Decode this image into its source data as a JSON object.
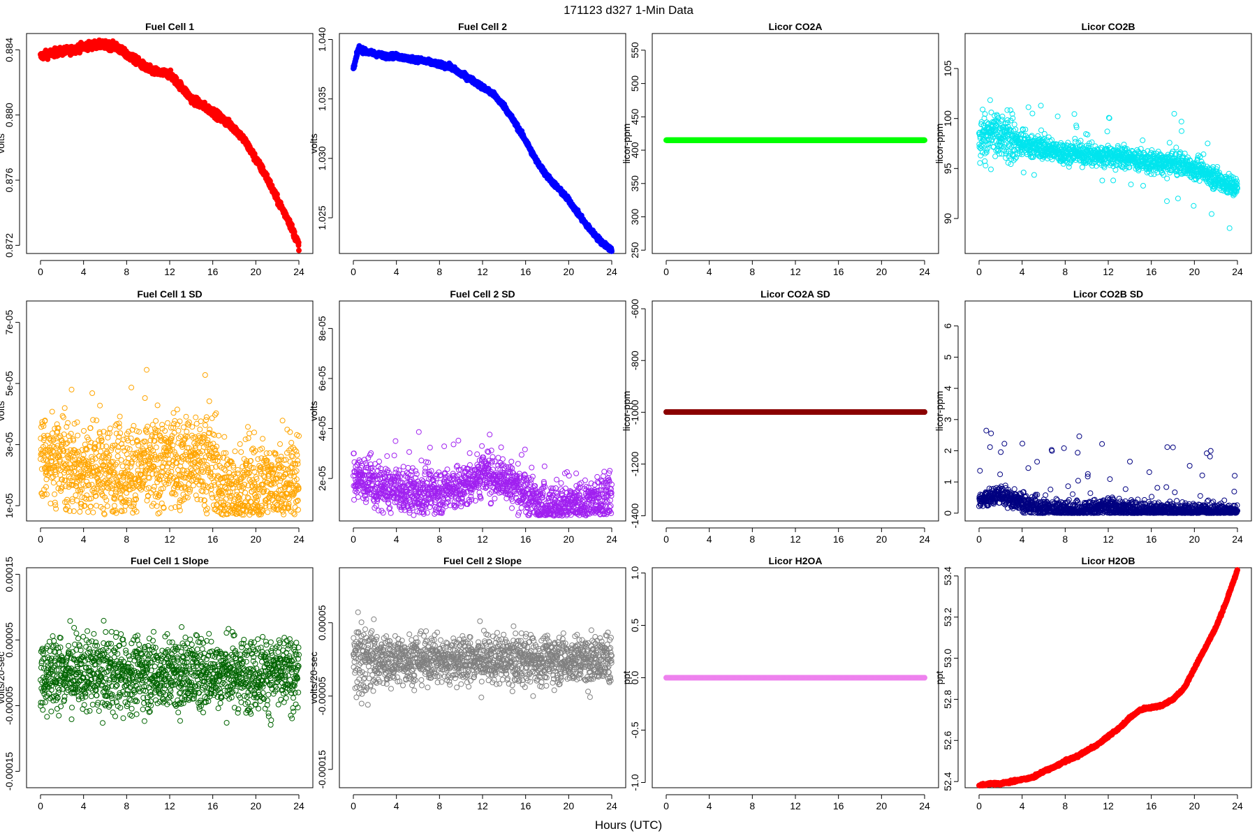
{
  "figure": {
    "title": "171123   d327   1-Min Data",
    "xlabel": "Hours (UTC)"
  },
  "chart_data": [
    {
      "id": "fc1",
      "type": "scatter",
      "title": "Fuel Cell 1",
      "ylabel": "volts",
      "color": "#ff0000",
      "marker": "filled",
      "xlim": [
        0,
        24
      ],
      "ylim": [
        0.8715,
        0.885
      ],
      "xticks": [
        "0",
        "4",
        "8",
        "12",
        "16",
        "20",
        "24"
      ],
      "yticks": [
        0.872,
        0.876,
        0.88,
        0.884
      ],
      "ytick_labels": [
        "0.872",
        "0.876",
        "0.880",
        "0.884"
      ],
      "x": [
        0,
        1,
        2,
        3,
        4,
        5,
        6,
        7,
        8,
        9,
        10,
        11,
        12,
        13,
        14,
        15,
        16,
        17,
        18,
        19,
        20,
        21,
        22,
        23,
        24
      ],
      "y": [
        0.8836,
        0.8838,
        0.8839,
        0.884,
        0.8842,
        0.8843,
        0.8843,
        0.8842,
        0.8837,
        0.8833,
        0.8828,
        0.8826,
        0.8825,
        0.8818,
        0.881,
        0.8806,
        0.8802,
        0.8797,
        0.8792,
        0.8784,
        0.8773,
        0.8762,
        0.8748,
        0.8736,
        0.872
      ]
    },
    {
      "id": "fc2",
      "type": "scatter",
      "title": "Fuel Cell 2",
      "ylabel": "volts",
      "color": "#0000ff",
      "marker": "filled",
      "xlim": [
        0,
        24
      ],
      "ylim": [
        1.022,
        1.0405
      ],
      "xticks": [
        "0",
        "4",
        "8",
        "12",
        "16",
        "20",
        "24"
      ],
      "yticks": [
        1.025,
        1.03,
        1.035,
        1.04
      ],
      "ytick_labels": [
        "1.025",
        "1.030",
        "1.035",
        "1.040"
      ],
      "x": [
        0,
        0.5,
        1,
        2,
        3,
        4,
        5,
        6,
        7,
        8,
        9,
        10,
        11,
        12,
        13,
        14,
        15,
        16,
        17,
        18,
        19,
        20,
        21,
        22,
        23,
        24
      ],
      "y": [
        1.0375,
        1.0393,
        1.039,
        1.0388,
        1.0386,
        1.0386,
        1.0384,
        1.0383,
        1.0381,
        1.0379,
        1.0377,
        1.0371,
        1.0366,
        1.036,
        1.0354,
        1.0344,
        1.033,
        1.0315,
        1.0298,
        1.0285,
        1.0275,
        1.0265,
        1.0252,
        1.024,
        1.023,
        1.0223
      ]
    },
    {
      "id": "co2a",
      "type": "scatter",
      "title": "Licor CO2A",
      "ylabel": "licor-ppm",
      "color": "#00ff00",
      "marker": "filled",
      "xlim": [
        0,
        24
      ],
      "ylim": [
        245,
        575
      ],
      "xticks": [
        "0",
        "4",
        "8",
        "12",
        "16",
        "20",
        "24"
      ],
      "yticks": [
        250,
        300,
        350,
        400,
        450,
        500,
        550
      ],
      "ytick_labels": [
        "250",
        "300",
        "350",
        "400",
        "450",
        "500",
        "550"
      ],
      "x": [
        0,
        24
      ],
      "y": [
        415,
        415
      ]
    },
    {
      "id": "co2b",
      "type": "scatter",
      "title": "Licor CO2B",
      "ylabel": "licor-ppm",
      "color": "#00e5ee",
      "marker": "open",
      "xlim": [
        0,
        24
      ],
      "ylim": [
        86.5,
        108.5
      ],
      "xticks": [
        "0",
        "4",
        "8",
        "12",
        "16",
        "20",
        "24"
      ],
      "yticks": [
        90,
        95,
        100,
        105
      ],
      "ytick_labels": [
        "90",
        "95",
        "100",
        "105"
      ],
      "x": [
        0,
        1,
        2,
        3,
        4,
        5,
        6,
        7,
        8,
        9,
        10,
        11,
        12,
        13,
        14,
        15,
        16,
        17,
        18,
        19,
        20,
        21,
        22,
        23,
        24
      ],
      "y": [
        98.0,
        98.3,
        98.5,
        97.8,
        97.4,
        97.2,
        97.0,
        96.8,
        96.5,
        96.5,
        96.4,
        96.3,
        96.3,
        96.2,
        96.0,
        95.8,
        95.6,
        95.5,
        95.5,
        95.4,
        95.0,
        94.5,
        94.0,
        93.5,
        93.0
      ]
    },
    {
      "id": "fc1sd",
      "type": "scatter",
      "title": "Fuel Cell 1 SD",
      "ylabel": "volts",
      "color": "#ffa500",
      "marker": "open",
      "xlim": [
        0,
        24
      ],
      "ylim": [
        5e-06,
        7.7e-05
      ],
      "xticks": [
        "0",
        "4",
        "8",
        "12",
        "16",
        "20",
        "24"
      ],
      "yticks": [
        1e-05,
        3e-05,
        5e-05,
        7e-05
      ],
      "ytick_labels": [
        "1e-05",
        "3e-05",
        "5e-05",
        "7e-05"
      ],
      "x": [
        0,
        2,
        4,
        6,
        8,
        10,
        12,
        14,
        16,
        16.5,
        18,
        20,
        22,
        24
      ],
      "y": [
        2.7e-05,
        2.4e-05,
        2.1e-05,
        2.2e-05,
        2.1e-05,
        2.3e-05,
        2.4e-05,
        2.5e-05,
        2.3e-05,
        1.6e-05,
        1.5e-05,
        1.6e-05,
        1.7e-05,
        1.8e-05
      ]
    },
    {
      "id": "fc2sd",
      "type": "scatter",
      "title": "Fuel Cell 2 SD",
      "ylabel": "volts",
      "color": "#a020f0",
      "marker": "open",
      "xlim": [
        0,
        24
      ],
      "ylim": [
        3e-06,
        9.1e-05
      ],
      "xticks": [
        "0",
        "4",
        "8",
        "12",
        "16",
        "20",
        "24"
      ],
      "yticks": [
        2e-05,
        4e-05,
        6e-05,
        8e-05
      ],
      "ytick_labels": [
        "2e-05",
        "4e-05",
        "6e-05",
        "8e-05"
      ],
      "x": [
        0,
        2,
        4,
        6,
        8,
        10,
        12,
        14,
        16,
        17,
        18,
        20,
        22,
        24
      ],
      "y": [
        2.2e-05,
        1.7e-05,
        1.5e-05,
        1.4e-05,
        1.5e-05,
        1.6e-05,
        2.2e-05,
        2e-05,
        1.4e-05,
        1e-05,
        9e-06,
        9e-06,
        1e-05,
        1.3e-05
      ]
    },
    {
      "id": "co2asd",
      "type": "scatter",
      "title": "Licor CO2A SD",
      "ylabel": "licor-ppm",
      "color": "#8b0000",
      "marker": "filled",
      "xlim": [
        0,
        24
      ],
      "ylim": [
        -1420,
        -570
      ],
      "xticks": [
        "0",
        "4",
        "8",
        "12",
        "16",
        "20",
        "24"
      ],
      "yticks": [
        -1400,
        -1200,
        -1000,
        -800,
        -600
      ],
      "ytick_labels": [
        "-1400",
        "-1200",
        "-1000",
        "-800",
        "-600"
      ],
      "x": [
        0,
        24
      ],
      "y": [
        -999,
        -999
      ]
    },
    {
      "id": "co2bsd",
      "type": "scatter",
      "title": "Licor CO2B SD",
      "ylabel": "licor-ppm",
      "color": "#000080",
      "marker": "open",
      "xlim": [
        0,
        24
      ],
      "ylim": [
        -0.25,
        6.8
      ],
      "xticks": [
        "0",
        "4",
        "8",
        "12",
        "16",
        "20",
        "24"
      ],
      "yticks": [
        0,
        1,
        2,
        3,
        4,
        5,
        6
      ],
      "ytick_labels": [
        "0",
        "1",
        "2",
        "3",
        "4",
        "5",
        "6"
      ],
      "x": [
        0,
        2,
        4,
        6,
        8,
        10,
        12,
        14,
        16,
        18,
        20,
        22,
        24
      ],
      "y": [
        0.4,
        0.6,
        0.3,
        0.15,
        0.1,
        0.1,
        0.2,
        0.1,
        0.08,
        0.06,
        0.05,
        0.05,
        0.03
      ]
    },
    {
      "id": "fc1slope",
      "type": "scatter",
      "title": "Fuel Cell 1 Slope",
      "ylabel": "volts/20-sec",
      "color": "#006400",
      "marker": "open",
      "xlim": [
        0,
        24
      ],
      "ylim": [
        -0.000175,
        0.00016
      ],
      "xticks": [
        "0",
        "4",
        "8",
        "12",
        "16",
        "20",
        "24"
      ],
      "yticks": [
        -0.00015,
        -5e-05,
        5e-05,
        0.00015
      ],
      "ytick_labels": [
        "-0.00015",
        "-0.00005",
        "0.00005",
        "0.00015"
      ],
      "x": [
        0,
        24
      ],
      "y": [
        0,
        0
      ]
    },
    {
      "id": "fc2slope",
      "type": "scatter",
      "title": "Fuel Cell 2 Slope",
      "ylabel": "volts/20-sec",
      "color": "#808080",
      "marker": "open",
      "xlim": [
        0,
        24
      ],
      "ylim": [
        -0.000175,
        0.000125
      ],
      "xticks": [
        "0",
        "4",
        "8",
        "12",
        "16",
        "20",
        "24"
      ],
      "yticks": [
        -0.00015,
        -5e-05,
        5e-05
      ],
      "ytick_labels": [
        "-0.00015",
        "-0.00005",
        "0.00005"
      ],
      "x": [
        0,
        24
      ],
      "y": [
        0,
        0
      ]
    },
    {
      "id": "h2oa",
      "type": "scatter",
      "title": "Licor H2OA",
      "ylabel": "ppt",
      "color": "#ee82ee",
      "marker": "filled",
      "xlim": [
        0,
        24
      ],
      "ylim": [
        -1.05,
        1.05
      ],
      "xticks": [
        "0",
        "4",
        "8",
        "12",
        "16",
        "20",
        "24"
      ],
      "yticks": [
        -1.0,
        -0.5,
        0.0,
        0.5,
        1.0
      ],
      "ytick_labels": [
        "-1.0",
        "-0.5",
        "0.0",
        "0.5",
        "1.0"
      ],
      "x": [
        0,
        24
      ],
      "y": [
        0,
        0
      ]
    },
    {
      "id": "h2ob",
      "type": "scatter",
      "title": "Licor H2OB",
      "ylabel": "ppt",
      "color": "#ff0000",
      "marker": "filled",
      "xlim": [
        0,
        24
      ],
      "ylim": [
        52.37,
        53.44
      ],
      "xticks": [
        "0",
        "4",
        "8",
        "12",
        "16",
        "20",
        "24"
      ],
      "yticks": [
        52.4,
        52.6,
        52.8,
        53.0,
        53.2,
        53.4
      ],
      "ytick_labels": [
        "52.4",
        "52.6",
        "52.8",
        "53.0",
        "53.2",
        "53.4"
      ],
      "x": [
        0,
        1,
        2,
        3,
        4,
        5,
        6,
        7,
        8,
        9,
        10,
        11,
        12,
        13,
        14,
        15,
        16,
        17,
        18,
        19,
        20,
        21,
        22,
        23,
        24
      ],
      "y": [
        52.38,
        52.39,
        52.39,
        52.4,
        52.41,
        52.42,
        52.45,
        52.47,
        52.5,
        52.52,
        52.55,
        52.58,
        52.62,
        52.66,
        52.71,
        52.75,
        52.76,
        52.77,
        52.8,
        52.85,
        52.95,
        53.05,
        53.15,
        53.28,
        53.43
      ]
    }
  ]
}
